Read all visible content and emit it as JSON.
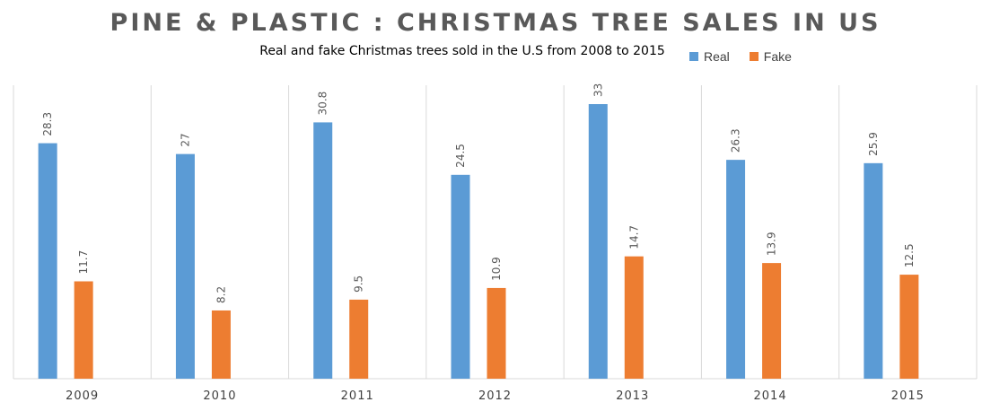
{
  "chart_data": {
    "type": "bar",
    "title": "PINE & PLASTIC : CHRISTMAS TREE SALES IN US",
    "subtitle": "Real and fake  Christmas trees sold in the U.S from 2008 to 2015",
    "categories": [
      "2009",
      "2010",
      "2011",
      "2012",
      "2013",
      "2014",
      "2015"
    ],
    "series": [
      {
        "name": "Real",
        "color": "#5B9BD5",
        "values": [
          28.3,
          27,
          30.8,
          24.5,
          33,
          26.3,
          25.9
        ]
      },
      {
        "name": "Fake",
        "color": "#ED7D31",
        "values": [
          11.7,
          8.2,
          9.5,
          10.9,
          14.7,
          13.9,
          12.5
        ]
      }
    ],
    "ylim": [
      0,
      33
    ],
    "xlabel": "",
    "ylabel": "",
    "grid": "vertical category separators",
    "legend_position": "top-right",
    "data_labels": "rotated, above bars"
  }
}
